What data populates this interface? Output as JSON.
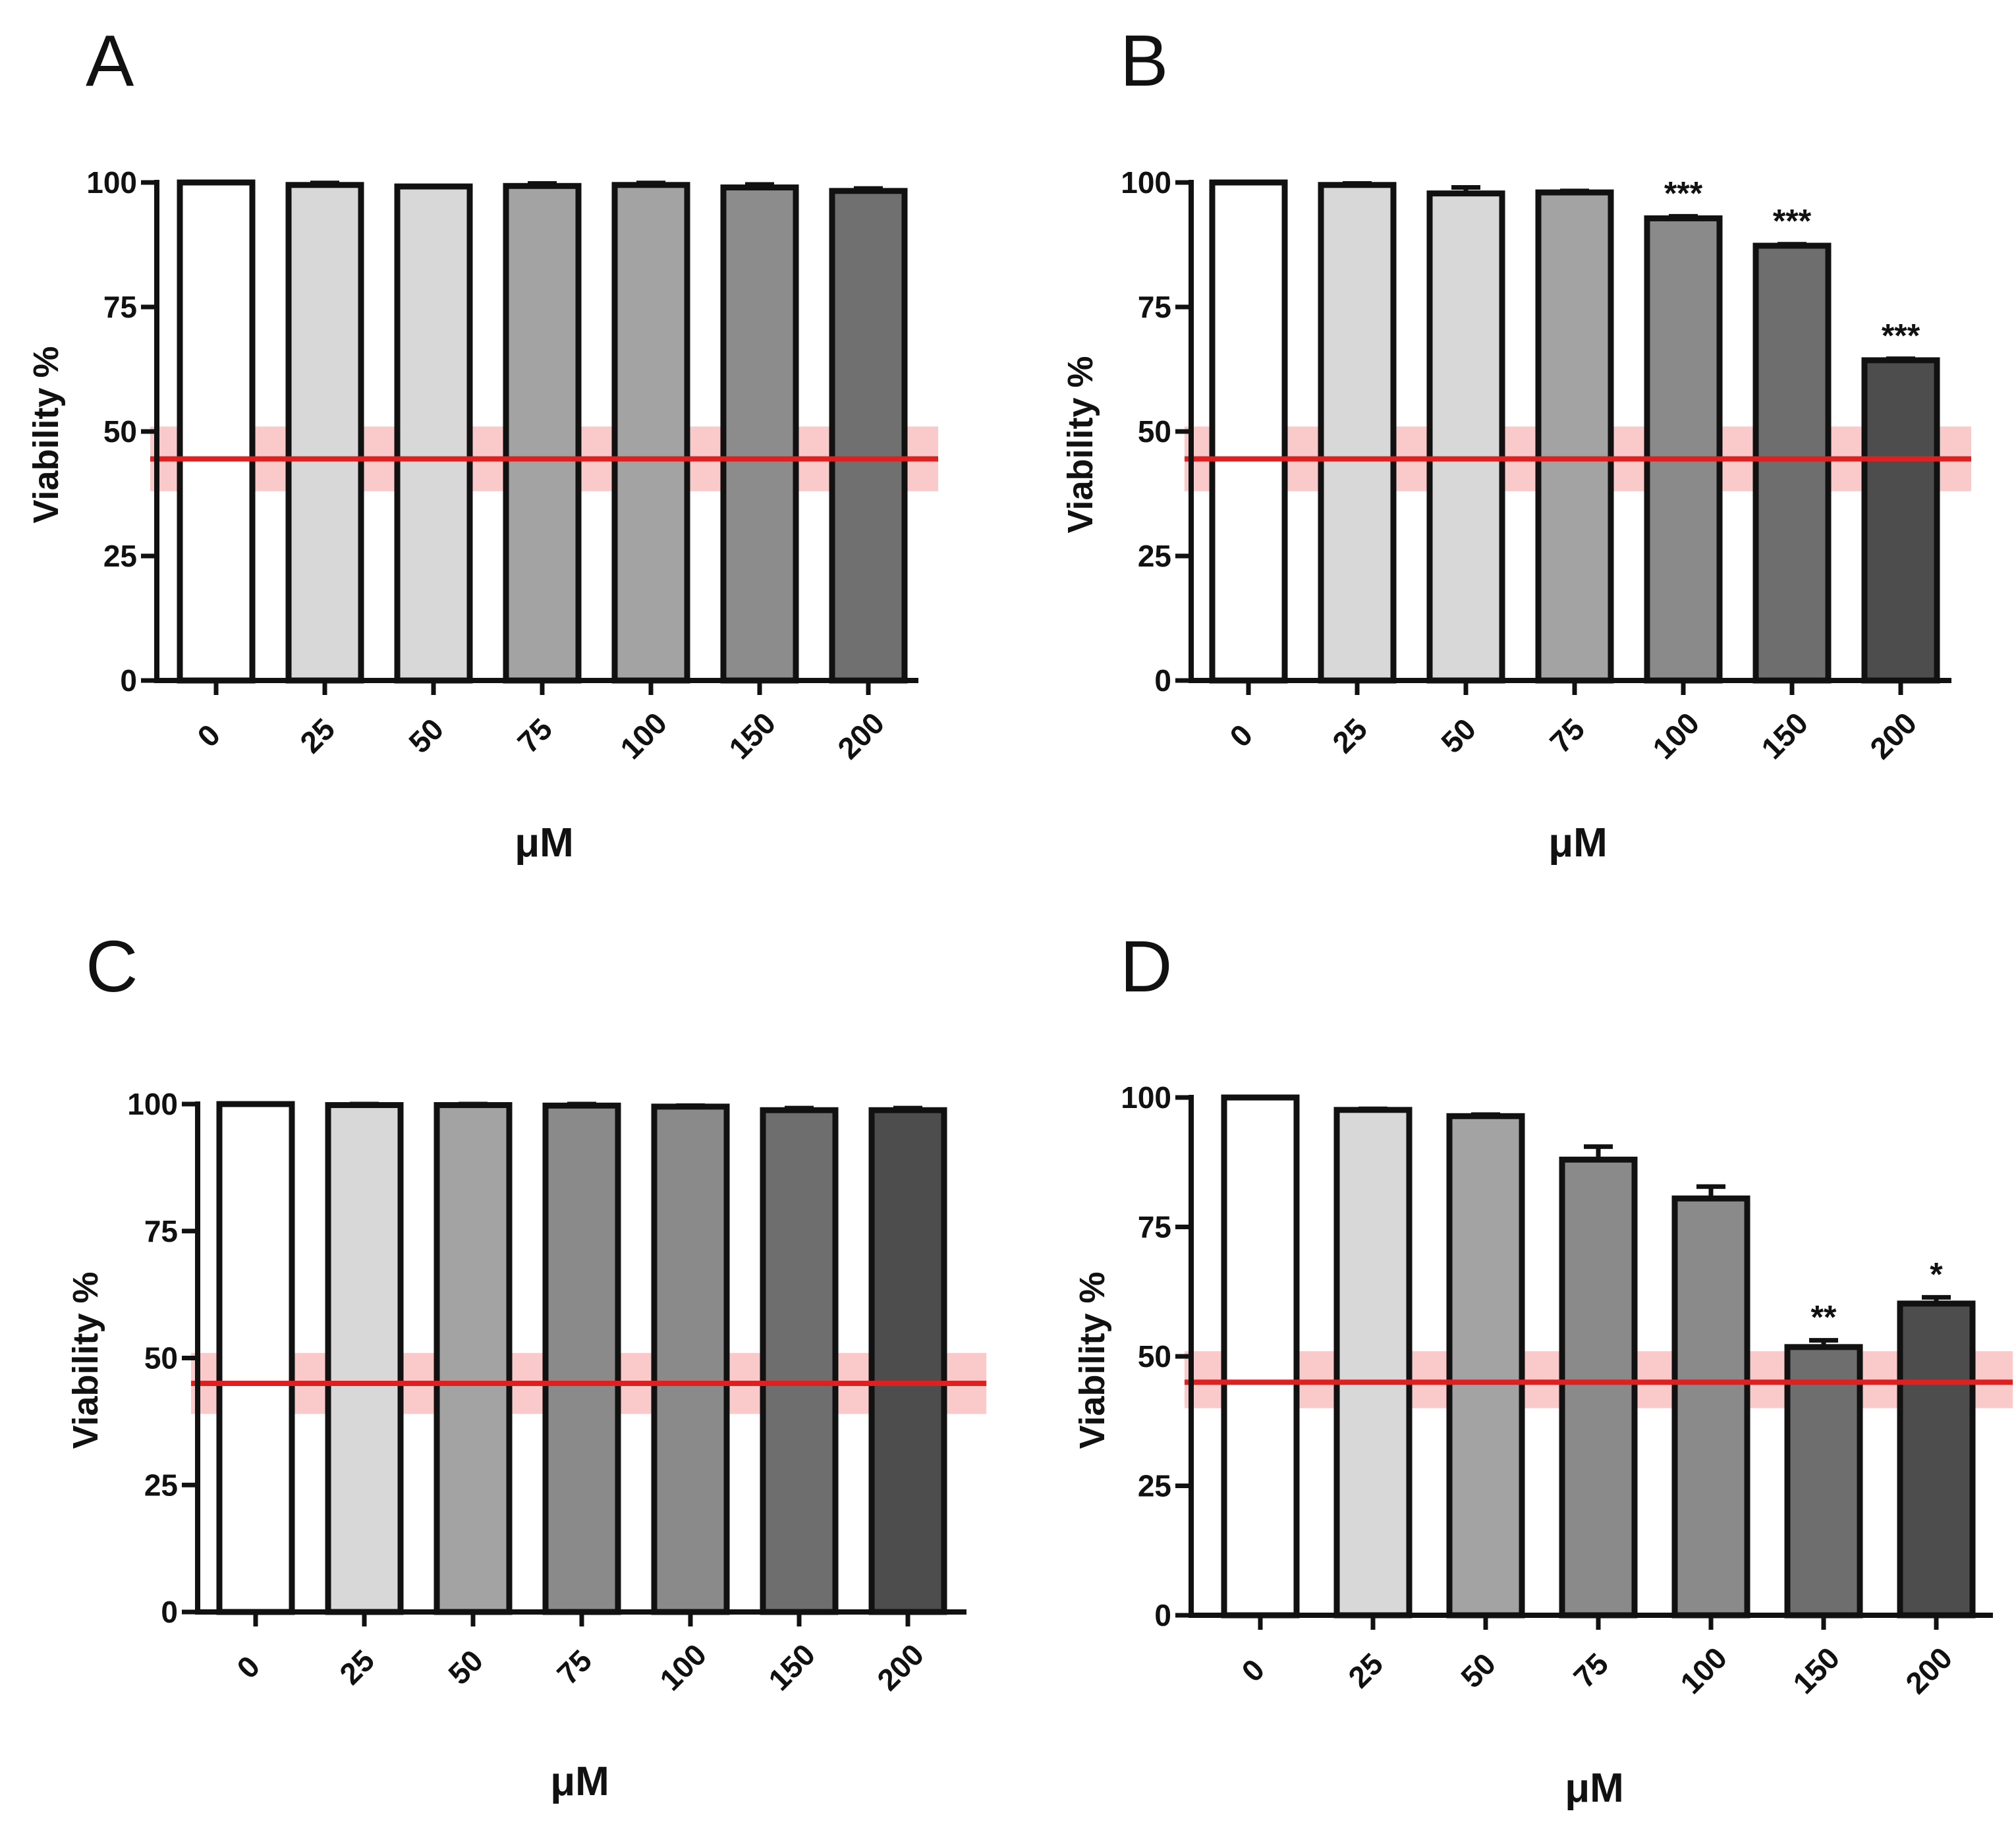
{
  "colors": {
    "axis": "#111111",
    "bar_stroke": "#111111",
    "threshold_line": "#e02020",
    "threshold_band": "#f8b3b3"
  },
  "chart_data": [
    {
      "panel": "A",
      "type": "bar",
      "xlabel": "μM",
      "ylabel": "Viability %",
      "ylim": [
        0,
        100
      ],
      "yticks": [
        "0",
        "25",
        "50",
        "75",
        "100"
      ],
      "categories": [
        "0",
        "25",
        "50",
        "75",
        "100",
        "150",
        "200"
      ],
      "values": [
        100,
        99.5,
        99.2,
        99.3,
        99.5,
        99.0,
        98.3
      ],
      "errors": [
        0,
        0.4,
        0,
        0.5,
        0.4,
        0.6,
        0.5
      ],
      "bar_colors": [
        "#ffffff",
        "#d8d8d8",
        "#d8d8d8",
        "#a3a3a3",
        "#a3a3a3",
        "#8c8c8c",
        "#707070"
      ],
      "significance": [
        "",
        "",
        "",
        "",
        "",
        "",
        ""
      ],
      "threshold": {
        "value": 44.5,
        "band": [
          38,
          51
        ]
      }
    },
    {
      "panel": "B",
      "type": "bar",
      "xlabel": "μM",
      "ylabel": "Viability %",
      "ylim": [
        0,
        100
      ],
      "yticks": [
        "0",
        "25",
        "50",
        "75",
        "100"
      ],
      "categories": [
        "0",
        "25",
        "50",
        "75",
        "100",
        "150",
        "200"
      ],
      "values": [
        100,
        99.5,
        97.8,
        98.0,
        92.8,
        87.3,
        64.3
      ],
      "errors": [
        0,
        0.3,
        1.2,
        0.3,
        0.4,
        0.3,
        0.3
      ],
      "bar_colors": [
        "#ffffff",
        "#d8d8d8",
        "#d8d8d8",
        "#a3a3a3",
        "#8a8a8a",
        "#6e6e6e",
        "#4d4d4d"
      ],
      "significance": [
        "",
        "",
        "",
        "",
        "***",
        "***",
        "***"
      ],
      "threshold": {
        "value": 44.5,
        "band": [
          38,
          51
        ]
      }
    },
    {
      "panel": "C",
      "type": "bar",
      "xlabel": "μM",
      "ylabel": "Viability %",
      "ylim": [
        0,
        100
      ],
      "yticks": [
        "0",
        "25",
        "50",
        "75",
        "100"
      ],
      "categories": [
        "0",
        "25",
        "50",
        "75",
        "100",
        "150",
        "200"
      ],
      "values": [
        100,
        99.8,
        99.8,
        99.7,
        99.5,
        98.8,
        98.8
      ],
      "errors": [
        0,
        0.2,
        0.2,
        0.3,
        0.2,
        0.4,
        0.4
      ],
      "bar_colors": [
        "#ffffff",
        "#d8d8d8",
        "#a3a3a3",
        "#8a8a8a",
        "#8a8a8a",
        "#6e6e6e",
        "#4d4d4d"
      ],
      "significance": [
        "",
        "",
        "",
        "",
        "",
        "",
        ""
      ],
      "threshold": {
        "value": 45,
        "band": [
          39,
          51
        ]
      }
    },
    {
      "panel": "D",
      "type": "bar",
      "xlabel": "μM",
      "ylabel": "Viability %",
      "ylim": [
        0,
        100
      ],
      "yticks": [
        "0",
        "25",
        "50",
        "75",
        "100"
      ],
      "categories": [
        "0",
        "25",
        "50",
        "75",
        "100",
        "150",
        "200"
      ],
      "values": [
        100,
        97.6,
        96.4,
        88.0,
        80.5,
        51.8,
        60.2
      ],
      "errors": [
        0,
        0.2,
        0.3,
        2.5,
        2.3,
        1.3,
        1.2
      ],
      "bar_colors": [
        "#ffffff",
        "#d8d8d8",
        "#a3a3a3",
        "#8a8a8a",
        "#8a8a8a",
        "#6e6e6e",
        "#4d4d4d"
      ],
      "significance": [
        "",
        "",
        "",
        "",
        "",
        "**",
        "*"
      ],
      "threshold": {
        "value": 45,
        "band": [
          40,
          51
        ]
      }
    }
  ]
}
